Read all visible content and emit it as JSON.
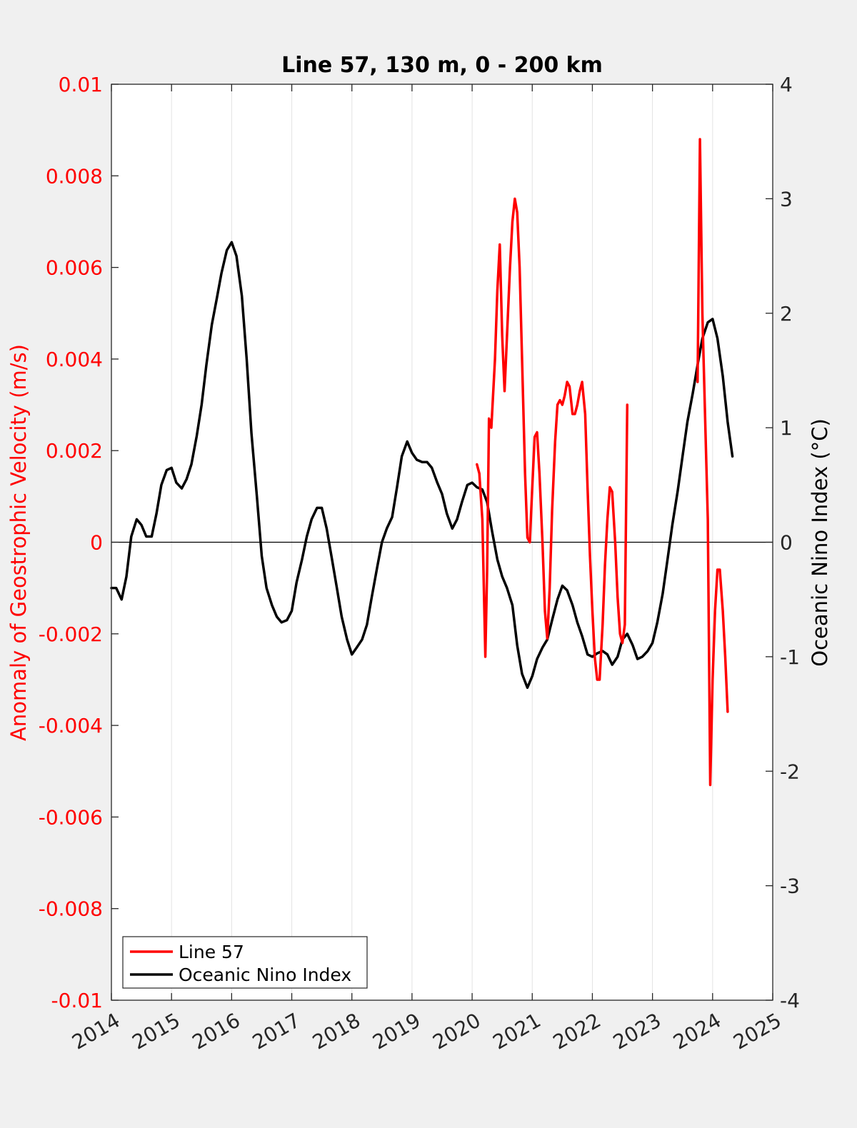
{
  "chart_data": {
    "type": "line",
    "title": "Line 57, 130 m, 0 - 200 km",
    "xlabel": "",
    "ylabel_left": "Anomaly of Geostrophic Velocity (m/s)",
    "ylabel_right": "Oceanic Nino Index (°C)",
    "xlim": [
      2014,
      2025
    ],
    "ylim_left": [
      -0.01,
      0.01
    ],
    "ylim_right": [
      -4,
      4
    ],
    "x_ticks": [
      "2014",
      "2015",
      "2016",
      "2017",
      "2018",
      "2019",
      "2020",
      "2021",
      "2022",
      "2023",
      "2024",
      "2025"
    ],
    "y_ticks_left": [
      "0.01",
      "0.008",
      "0.006",
      "0.004",
      "0.002",
      "0",
      "-0.002",
      "-0.004",
      "-0.006",
      "-0.008",
      "-0.01"
    ],
    "y_ticks_right": [
      "4",
      "3",
      "2",
      "1",
      "0",
      "-1",
      "-2",
      "-3",
      "-4"
    ],
    "vertical_grid": true,
    "zero_line": true,
    "legend_position": "bottom-left",
    "series": [
      {
        "name": "Line 57",
        "axis": "left",
        "color": "#ff0000",
        "segments": [
          [
            [
              2020.08,
              0.0017
            ],
            [
              2020.12,
              0.0015
            ],
            [
              2020.17,
              0.0005
            ],
            [
              2020.22,
              -0.0025
            ],
            [
              2020.25,
              -0.0006
            ],
            [
              2020.28,
              0.0027
            ],
            [
              2020.32,
              0.0025
            ],
            [
              2020.38,
              0.004
            ],
            [
              2020.42,
              0.0055
            ],
            [
              2020.46,
              0.0065
            ],
            [
              2020.5,
              0.0045
            ],
            [
              2020.54,
              0.0033
            ],
            [
              2020.58,
              0.0045
            ],
            [
              2020.63,
              0.006
            ],
            [
              2020.67,
              0.007
            ],
            [
              2020.71,
              0.0075
            ],
            [
              2020.75,
              0.0072
            ],
            [
              2020.79,
              0.006
            ],
            [
              2020.83,
              0.004
            ],
            [
              2020.88,
              0.0015
            ],
            [
              2020.92,
              0.0001
            ],
            [
              2020.96,
              0.0
            ],
            [
              2021.0,
              0.0012
            ],
            [
              2021.04,
              0.0023
            ],
            [
              2021.08,
              0.0024
            ],
            [
              2021.12,
              0.0015
            ],
            [
              2021.17,
              0.0
            ],
            [
              2021.21,
              -0.0015
            ],
            [
              2021.25,
              -0.0021
            ],
            [
              2021.29,
              -0.001
            ],
            [
              2021.33,
              0.0007
            ],
            [
              2021.38,
              0.0022
            ],
            [
              2021.42,
              0.003
            ],
            [
              2021.46,
              0.0031
            ],
            [
              2021.5,
              0.003
            ],
            [
              2021.54,
              0.0032
            ],
            [
              2021.58,
              0.0035
            ],
            [
              2021.62,
              0.0034
            ],
            [
              2021.67,
              0.0028
            ],
            [
              2021.71,
              0.0028
            ],
            [
              2021.75,
              0.003
            ],
            [
              2021.79,
              0.0033
            ],
            [
              2021.83,
              0.0035
            ],
            [
              2021.88,
              0.0028
            ],
            [
              2021.92,
              0.0012
            ],
            [
              2021.96,
              -0.0003
            ],
            [
              2022.0,
              -0.0015
            ],
            [
              2022.04,
              -0.0025
            ],
            [
              2022.08,
              -0.003
            ],
            [
              2022.12,
              -0.003
            ],
            [
              2022.17,
              -0.0018
            ],
            [
              2022.21,
              -0.0005
            ],
            [
              2022.25,
              0.0005
            ],
            [
              2022.29,
              0.0012
            ],
            [
              2022.33,
              0.0011
            ],
            [
              2022.38,
              0.0
            ],
            [
              2022.42,
              -0.0012
            ],
            [
              2022.46,
              -0.002
            ],
            [
              2022.5,
              -0.0022
            ],
            [
              2022.54,
              -0.0018
            ],
            [
              2022.58,
              0.003
            ]
          ],
          [
            [
              2023.75,
              0.0035
            ],
            [
              2023.79,
              0.0088
            ],
            [
              2023.83,
              0.005
            ],
            [
              2023.88,
              0.0025
            ],
            [
              2023.92,
              0.0005
            ],
            [
              2023.96,
              -0.0053
            ],
            [
              2024.0,
              -0.003
            ],
            [
              2024.04,
              -0.0015
            ],
            [
              2024.08,
              -0.0006
            ],
            [
              2024.12,
              -0.0006
            ],
            [
              2024.17,
              -0.0015
            ],
            [
              2024.21,
              -0.0025
            ],
            [
              2024.25,
              -0.0037
            ]
          ]
        ]
      },
      {
        "name": "Oceanic Nino Index",
        "axis": "right",
        "color": "#000000",
        "points": [
          [
            2014.0,
            -0.4
          ],
          [
            2014.08,
            -0.4
          ],
          [
            2014.17,
            -0.5
          ],
          [
            2014.25,
            -0.3
          ],
          [
            2014.33,
            0.05
          ],
          [
            2014.42,
            0.2
          ],
          [
            2014.5,
            0.15
          ],
          [
            2014.58,
            0.05
          ],
          [
            2014.67,
            0.05
          ],
          [
            2014.75,
            0.25
          ],
          [
            2014.83,
            0.5
          ],
          [
            2014.92,
            0.63
          ],
          [
            2015.0,
            0.65
          ],
          [
            2015.08,
            0.52
          ],
          [
            2015.17,
            0.47
          ],
          [
            2015.25,
            0.55
          ],
          [
            2015.33,
            0.68
          ],
          [
            2015.42,
            0.93
          ],
          [
            2015.5,
            1.2
          ],
          [
            2015.58,
            1.55
          ],
          [
            2015.67,
            1.9
          ],
          [
            2015.75,
            2.12
          ],
          [
            2015.83,
            2.35
          ],
          [
            2015.92,
            2.55
          ],
          [
            2016.0,
            2.62
          ],
          [
            2016.08,
            2.5
          ],
          [
            2016.17,
            2.15
          ],
          [
            2016.25,
            1.6
          ],
          [
            2016.33,
            0.95
          ],
          [
            2016.42,
            0.4
          ],
          [
            2016.5,
            -0.12
          ],
          [
            2016.58,
            -0.4
          ],
          [
            2016.67,
            -0.55
          ],
          [
            2016.75,
            -0.65
          ],
          [
            2016.83,
            -0.7
          ],
          [
            2016.92,
            -0.68
          ],
          [
            2017.0,
            -0.6
          ],
          [
            2017.08,
            -0.35
          ],
          [
            2017.17,
            -0.15
          ],
          [
            2017.25,
            0.05
          ],
          [
            2017.33,
            0.2
          ],
          [
            2017.42,
            0.3
          ],
          [
            2017.5,
            0.3
          ],
          [
            2017.58,
            0.12
          ],
          [
            2017.67,
            -0.15
          ],
          [
            2017.75,
            -0.4
          ],
          [
            2017.83,
            -0.65
          ],
          [
            2017.92,
            -0.85
          ],
          [
            2018.0,
            -0.98
          ],
          [
            2018.08,
            -0.92
          ],
          [
            2018.17,
            -0.85
          ],
          [
            2018.25,
            -0.72
          ],
          [
            2018.33,
            -0.48
          ],
          [
            2018.42,
            -0.22
          ],
          [
            2018.5,
            0.0
          ],
          [
            2018.58,
            0.12
          ],
          [
            2018.67,
            0.22
          ],
          [
            2018.75,
            0.48
          ],
          [
            2018.83,
            0.75
          ],
          [
            2018.92,
            0.88
          ],
          [
            2019.0,
            0.78
          ],
          [
            2019.08,
            0.72
          ],
          [
            2019.17,
            0.7
          ],
          [
            2019.25,
            0.7
          ],
          [
            2019.33,
            0.65
          ],
          [
            2019.42,
            0.52
          ],
          [
            2019.5,
            0.42
          ],
          [
            2019.58,
            0.25
          ],
          [
            2019.67,
            0.12
          ],
          [
            2019.75,
            0.2
          ],
          [
            2019.83,
            0.35
          ],
          [
            2019.92,
            0.5
          ],
          [
            2020.0,
            0.52
          ],
          [
            2020.08,
            0.48
          ],
          [
            2020.17,
            0.46
          ],
          [
            2020.25,
            0.35
          ],
          [
            2020.33,
            0.1
          ],
          [
            2020.42,
            -0.15
          ],
          [
            2020.5,
            -0.3
          ],
          [
            2020.58,
            -0.4
          ],
          [
            2020.67,
            -0.55
          ],
          [
            2020.75,
            -0.9
          ],
          [
            2020.83,
            -1.15
          ],
          [
            2020.92,
            -1.27
          ],
          [
            2021.0,
            -1.17
          ],
          [
            2021.08,
            -1.02
          ],
          [
            2021.17,
            -0.92
          ],
          [
            2021.25,
            -0.85
          ],
          [
            2021.33,
            -0.68
          ],
          [
            2021.42,
            -0.5
          ],
          [
            2021.5,
            -0.38
          ],
          [
            2021.58,
            -0.42
          ],
          [
            2021.67,
            -0.55
          ],
          [
            2021.75,
            -0.7
          ],
          [
            2021.83,
            -0.82
          ],
          [
            2021.92,
            -0.98
          ],
          [
            2022.0,
            -1.0
          ],
          [
            2022.08,
            -0.97
          ],
          [
            2022.17,
            -0.95
          ],
          [
            2022.25,
            -0.98
          ],
          [
            2022.33,
            -1.07
          ],
          [
            2022.42,
            -1.0
          ],
          [
            2022.5,
            -0.85
          ],
          [
            2022.58,
            -0.8
          ],
          [
            2022.67,
            -0.9
          ],
          [
            2022.75,
            -1.02
          ],
          [
            2022.83,
            -1.0
          ],
          [
            2022.92,
            -0.95
          ],
          [
            2023.0,
            -0.88
          ],
          [
            2023.08,
            -0.7
          ],
          [
            2023.17,
            -0.45
          ],
          [
            2023.25,
            -0.15
          ],
          [
            2023.33,
            0.15
          ],
          [
            2023.42,
            0.45
          ],
          [
            2023.5,
            0.75
          ],
          [
            2023.58,
            1.05
          ],
          [
            2023.67,
            1.3
          ],
          [
            2023.75,
            1.55
          ],
          [
            2023.83,
            1.78
          ],
          [
            2023.92,
            1.92
          ],
          [
            2024.0,
            1.95
          ],
          [
            2024.08,
            1.78
          ],
          [
            2024.17,
            1.45
          ],
          [
            2024.25,
            1.05
          ],
          [
            2024.33,
            0.75
          ]
        ]
      }
    ]
  }
}
